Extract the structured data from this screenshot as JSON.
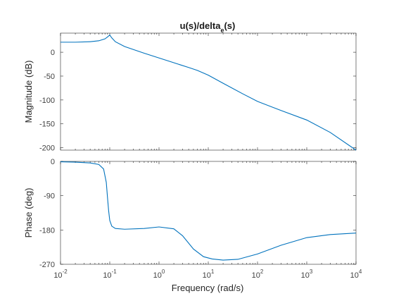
{
  "chart_data": [
    {
      "type": "line",
      "title_main": "u(s)/delta",
      "title_sub": "e",
      "title_tail": "(s)",
      "xlabel": "",
      "ylabel": "Magnitude (dB)",
      "xscale": "log",
      "xlim": [
        0.01,
        10000
      ],
      "ylim": [
        -205,
        40
      ],
      "yticks": [
        0,
        -50,
        -100,
        -150,
        -200
      ],
      "ytick_labels": [
        "0",
        "-50",
        "-100",
        "-150",
        "-200"
      ],
      "grid": false,
      "series": [
        {
          "color": "#0072BD",
          "x": [
            0.01,
            0.02,
            0.04,
            0.06,
            0.08,
            0.09,
            0.1,
            0.11,
            0.13,
            0.2,
            0.5,
            1,
            2,
            4,
            6,
            10,
            20,
            50,
            100,
            300,
            1000,
            3000,
            10000
          ],
          "y": [
            21,
            21,
            22,
            24,
            28,
            32,
            36,
            30,
            22,
            12,
            -2,
            -12,
            -22,
            -32,
            -38,
            -48,
            -65,
            -87,
            -103,
            -122,
            -142,
            -168,
            -205
          ]
        }
      ]
    },
    {
      "type": "line",
      "xlabel": "Frequency  (rad/s)",
      "ylabel": "Phase (deg)",
      "xscale": "log",
      "xlim": [
        0.01,
        10000
      ],
      "ylim": [
        -270,
        0
      ],
      "xticks": [
        0.01,
        0.1,
        1,
        10,
        100,
        1000,
        10000
      ],
      "xtick_labels": [
        {
          "base": "10",
          "exp": "-2"
        },
        {
          "base": "10",
          "exp": "-1"
        },
        {
          "base": "10",
          "exp": "0"
        },
        {
          "base": "10",
          "exp": "1"
        },
        {
          "base": "10",
          "exp": "2"
        },
        {
          "base": "10",
          "exp": "3"
        },
        {
          "base": "10",
          "exp": "4"
        }
      ],
      "yticks": [
        0,
        -90,
        -180,
        -270
      ],
      "ytick_labels": [
        "0",
        "-90",
        "-180",
        "-270"
      ],
      "grid": false,
      "series": [
        {
          "color": "#0072BD",
          "x": [
            0.01,
            0.02,
            0.04,
            0.06,
            0.075,
            0.085,
            0.09,
            0.095,
            0.1,
            0.11,
            0.13,
            0.2,
            0.5,
            1,
            2,
            3,
            5,
            8,
            12,
            20,
            40,
            100,
            300,
            1000,
            3000,
            10000
          ],
          "y": [
            -1,
            -2,
            -4,
            -8,
            -20,
            -55,
            -95,
            -130,
            -155,
            -170,
            -176,
            -178,
            -176,
            -172,
            -177,
            -195,
            -230,
            -250,
            -256,
            -259,
            -257,
            -243,
            -220,
            -200,
            -192,
            -188
          ]
        }
      ]
    }
  ]
}
